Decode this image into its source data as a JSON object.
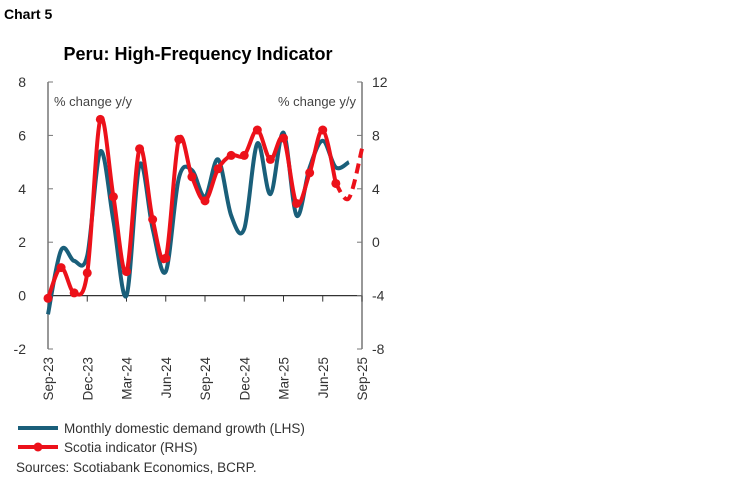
{
  "chart_label": "Chart 5",
  "chart_data": {
    "type": "line",
    "title": "Peru: High-Frequency Indicator",
    "left_axis_unit": "% change y/y",
    "right_axis_unit": "% change y/y",
    "left_ylim": [
      -2,
      8
    ],
    "left_ticks": [
      "8",
      "6",
      "4",
      "2",
      "0",
      "-2"
    ],
    "right_ylim": [
      -8,
      12
    ],
    "right_ticks": [
      "12",
      "8",
      "4",
      "0",
      "-4",
      "-8"
    ],
    "x": [
      "Sep-23",
      "Oct-23",
      "Nov-23",
      "Dec-23",
      "Jan-24",
      "Feb-24",
      "Mar-24",
      "Apr-24",
      "May-24",
      "Jun-24",
      "Jul-24",
      "Aug-24",
      "Sep-24",
      "Oct-24",
      "Nov-24",
      "Dec-24",
      "Jan-25",
      "Feb-25",
      "Mar-25",
      "Apr-25",
      "May-25",
      "Jun-25",
      "Jul-25",
      "Aug-25",
      "Sep-25"
    ],
    "x_tick_labels": [
      "Sep-23",
      "Dec-23",
      "Mar-24",
      "Jun-24",
      "Sep-24",
      "Dec-24",
      "Mar-25",
      "Jun-25",
      "Sep-25"
    ],
    "series": [
      {
        "name": "Monthly domestic demand growth (LHS)",
        "axis": "left",
        "color": "#1a5f7a",
        "values": [
          -0.7,
          1.7,
          1.3,
          1.5,
          5.4,
          2.8,
          0.0,
          4.9,
          2.5,
          0.9,
          4.4,
          4.7,
          3.7,
          5.1,
          3.0,
          2.5,
          5.7,
          3.8,
          6.1,
          3.0,
          4.8,
          5.8,
          4.8,
          5.0,
          null
        ]
      },
      {
        "name": "Scotia indicator (RHS)",
        "axis": "right",
        "color": "#ec111a",
        "values": [
          -4.2,
          -1.9,
          -3.8,
          -2.3,
          9.2,
          3.4,
          -2.2,
          7.0,
          1.7,
          -1.2,
          7.7,
          4.9,
          3.1,
          5.5,
          6.5,
          6.5,
          8.4,
          6.2,
          7.8,
          2.9,
          5.2,
          8.4,
          4.4,
          3.3,
          7.0
        ],
        "estimated_from": "Jul-25"
      }
    ],
    "grid": false,
    "legend": "bottom-left"
  },
  "source": "Sources: Scotiabank Economics, BCRP."
}
